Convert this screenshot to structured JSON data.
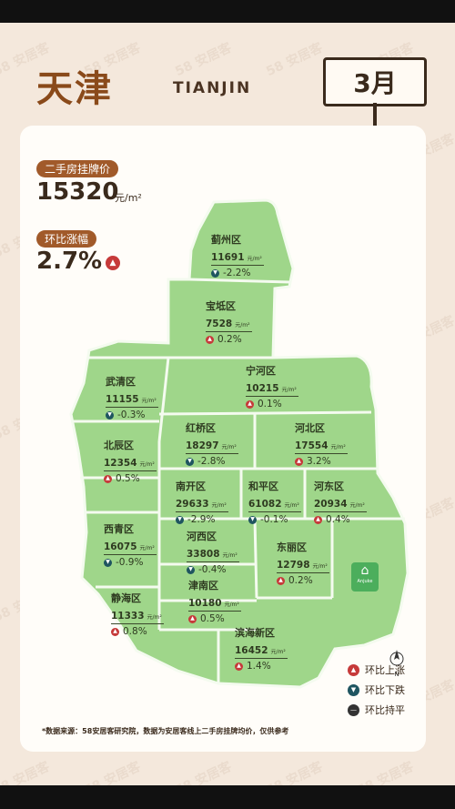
{
  "header": {
    "title_cn": "天津",
    "title_en": "TIANJIN",
    "month": "3月"
  },
  "summary": {
    "price_label": "二手房挂牌价",
    "price_value": "15320",
    "price_unit": "元/m²",
    "change_label": "环比涨幅",
    "change_value": "2.7%",
    "change_direction": "up"
  },
  "districts": [
    {
      "name": "蓟州区",
      "price": "11691",
      "unit": "元/m²",
      "change": "-2.2%",
      "direction": "down"
    },
    {
      "name": "宝坻区",
      "price": "7528",
      "unit": "元/m²",
      "change": "0.2%",
      "direction": "up"
    },
    {
      "name": "宁河区",
      "price": "10215",
      "unit": "元/m²",
      "change": "0.1%",
      "direction": "up"
    },
    {
      "name": "武清区",
      "price": "11155",
      "unit": "元/m²",
      "change": "-0.3%",
      "direction": "down"
    },
    {
      "name": "红桥区",
      "price": "18297",
      "unit": "元/m²",
      "change": "-2.8%",
      "direction": "down"
    },
    {
      "name": "河北区",
      "price": "17554",
      "unit": "元/m²",
      "change": "3.2%",
      "direction": "up"
    },
    {
      "name": "北辰区",
      "price": "12354",
      "unit": "元/m²",
      "change": "0.5%",
      "direction": "up"
    },
    {
      "name": "南开区",
      "price": "29633",
      "unit": "元/m²",
      "change": "-2.9%",
      "direction": "down"
    },
    {
      "name": "和平区",
      "price": "61082",
      "unit": "元/m²",
      "change": "-0.1%",
      "direction": "down"
    },
    {
      "name": "河东区",
      "price": "20934",
      "unit": "元/m²",
      "change": "0.4%",
      "direction": "up"
    },
    {
      "name": "西青区",
      "price": "16075",
      "unit": "元/m²",
      "change": "-0.9%",
      "direction": "down"
    },
    {
      "name": "河西区",
      "price": "33808",
      "unit": "元/m²",
      "change": "-0.4%",
      "direction": "down"
    },
    {
      "name": "东丽区",
      "price": "12798",
      "unit": "元/m²",
      "change": "0.2%",
      "direction": "up"
    },
    {
      "name": "津南区",
      "price": "10180",
      "unit": "元/m²",
      "change": "0.5%",
      "direction": "up"
    },
    {
      "name": "静海区",
      "price": "11333",
      "unit": "元/m²",
      "change": "0.8%",
      "direction": "up"
    },
    {
      "name": "滨海新区",
      "price": "16452",
      "unit": "元/m²",
      "change": "1.4%",
      "direction": "up"
    }
  ],
  "brand": {
    "name": "Anjuke",
    "watermark": "58 安居客"
  },
  "compass": "N",
  "legend": [
    {
      "label": "环比上涨",
      "color": "#c63a3a",
      "icon": "arrow-up-icon"
    },
    {
      "label": "环比下跌",
      "color": "#1f5560",
      "icon": "arrow-down-icon"
    },
    {
      "label": "环比持平",
      "color": "#333333",
      "icon": "minus-icon"
    }
  ],
  "footnote": "*数据来源：58安居客研究院，数据为安居客线上二手房挂牌均价，仅供参考",
  "colors": {
    "map_fill": "#9fd68a",
    "up": "#c63a3a",
    "down": "#1f5560",
    "accent": "#a15a2a"
  }
}
